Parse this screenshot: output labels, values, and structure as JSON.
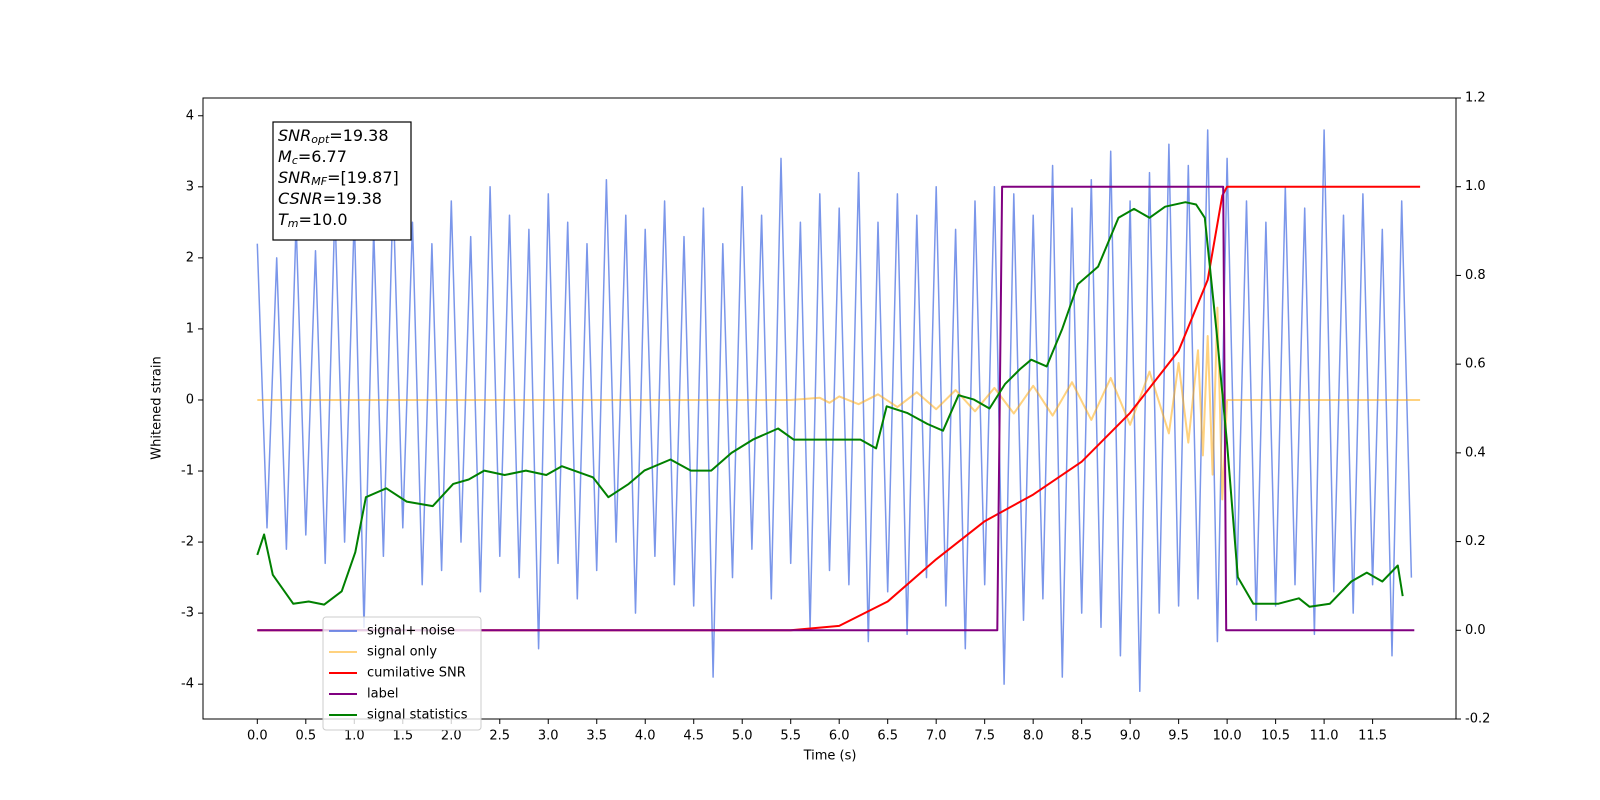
{
  "chart_data": {
    "type": "line",
    "xlabel": "Time (s)",
    "ylabel": "Whitened strain",
    "xlim": [
      -0.56,
      12.36
    ],
    "ylim": [
      -4.49,
      4.25
    ],
    "y2lim": [
      -0.2,
      1.2
    ],
    "xticks": [
      {
        "value": 0,
        "label": "0.0"
      },
      0.5,
      {
        "value": 1,
        "label": "1.0"
      },
      1.5,
      {
        "value": 2,
        "label": "2.0"
      },
      2.5,
      {
        "value": 3,
        "label": "3.0"
      },
      3.5,
      {
        "value": 4,
        "label": "4.0"
      },
      4.5,
      {
        "value": 5,
        "label": "5.0"
      },
      5.5,
      {
        "value": 6,
        "label": "6.0"
      },
      6.5,
      {
        "value": 7,
        "label": "7.0"
      },
      7.5,
      {
        "value": 8,
        "label": "8.0"
      },
      8.5,
      {
        "value": 9,
        "label": "9.0"
      },
      9.5,
      {
        "value": 10,
        "label": "10.0"
      },
      10.5,
      {
        "value": 11,
        "label": "11.0"
      },
      11.5
    ],
    "yticks": [
      -4,
      -3,
      -2,
      -1,
      0,
      1,
      2,
      3,
      4
    ],
    "y2ticks": [
      -0.2,
      {
        "value": 0,
        "label": "0.0"
      },
      0.2,
      0.4,
      0.6,
      0.8,
      {
        "value": 1,
        "label": "1.0"
      },
      1.2
    ],
    "legend": "lower left",
    "annotation": [
      {
        "main": "SNR",
        "sub": "opt",
        "rest": "=19.38"
      },
      {
        "main": "M",
        "sub": "c",
        "rest": "=6.77"
      },
      {
        "main": "SNR",
        "sub": "MF",
        "rest": "=[19.87]"
      },
      {
        "main": "CSNR",
        "rest": "=19.38"
      },
      {
        "main": "T",
        "sub": "m",
        "rest": "=10.0"
      }
    ],
    "series": [
      {
        "name": "signal+ noise",
        "color": "#4169e1",
        "axis": "y",
        "x": [
          0,
          0.1,
          0.2,
          0.3,
          0.4,
          0.5,
          0.6,
          0.7,
          0.8,
          0.9,
          1,
          1.1,
          1.2,
          1.3,
          1.4,
          1.5,
          1.6,
          1.7,
          1.8,
          1.9,
          2,
          2.1,
          2.2,
          2.3,
          2.4,
          2.5,
          2.6,
          2.7,
          2.8,
          2.9,
          3,
          3.1,
          3.2,
          3.3,
          3.4,
          3.5,
          3.6,
          3.7,
          3.8,
          3.9,
          4,
          4.1,
          4.2,
          4.3,
          4.4,
          4.5,
          4.6,
          4.7,
          4.8,
          4.9,
          5,
          5.1,
          5.2,
          5.3,
          5.4,
          5.5,
          5.6,
          5.7,
          5.8,
          5.9,
          6,
          6.1,
          6.2,
          6.3,
          6.4,
          6.5,
          6.6,
          6.7,
          6.8,
          6.9,
          7,
          7.1,
          7.2,
          7.3,
          7.4,
          7.5,
          7.6,
          7.7,
          7.8,
          7.9,
          8,
          8.1,
          8.2,
          8.3,
          8.4,
          8.5,
          8.6,
          8.7,
          8.8,
          8.9,
          9,
          9.1,
          9.2,
          9.3,
          9.4,
          9.5,
          9.6,
          9.7,
          9.8,
          9.9,
          10,
          10.1,
          10.2,
          10.3,
          10.4,
          10.5,
          10.6,
          10.7,
          10.8,
          10.9,
          11,
          11.1,
          11.2,
          11.3,
          11.4,
          11.5,
          11.6,
          11.7,
          11.8,
          11.9
        ],
        "values": [
          2.2,
          -1.8,
          2.0,
          -2.1,
          2.5,
          -1.9,
          2.1,
          -2.3,
          2.7,
          -2.0,
          2.6,
          -3.2,
          2.4,
          -2.2,
          2.9,
          -1.8,
          2.5,
          -2.6,
          2.2,
          -2.4,
          2.8,
          -2.0,
          2.3,
          -2.7,
          3.0,
          -2.2,
          2.6,
          -2.5,
          2.4,
          -3.5,
          2.9,
          -2.3,
          2.5,
          -2.8,
          2.2,
          -2.4,
          3.1,
          -2.0,
          2.6,
          -3.0,
          2.4,
          -2.2,
          2.8,
          -2.6,
          2.3,
          -2.9,
          2.7,
          -3.9,
          2.2,
          -2.5,
          3.0,
          -2.1,
          2.6,
          -2.8,
          3.4,
          -2.3,
          2.5,
          -3.2,
          2.9,
          -2.4,
          2.7,
          -2.6,
          3.2,
          -3.4,
          2.5,
          -2.7,
          2.9,
          -3.3,
          2.6,
          -2.5,
          3.0,
          -2.9,
          2.4,
          -3.5,
          2.8,
          -2.6,
          3.0,
          -4.0,
          2.9,
          -3.1,
          2.6,
          -2.8,
          3.3,
          -3.9,
          2.7,
          -3.0,
          3.1,
          -3.2,
          3.5,
          -3.6,
          2.8,
          -4.1,
          3.2,
          -3.0,
          3.6,
          -2.9,
          3.3,
          -2.8,
          3.8,
          -3.4,
          3.4,
          -2.6,
          2.8,
          -3.1,
          2.5,
          -2.9,
          3.0,
          -2.6,
          2.7,
          -3.3,
          3.8,
          -2.7,
          2.6,
          -3.0,
          2.9,
          -2.6,
          2.4,
          -3.6,
          2.8,
          -2.5
        ]
      },
      {
        "name": "signal only",
        "color": "#ffa500",
        "axis": "y",
        "x": [
          0,
          5.5,
          5.8,
          5.9,
          6.0,
          6.2,
          6.4,
          6.6,
          6.8,
          7.0,
          7.2,
          7.4,
          7.6,
          7.8,
          8.0,
          8.2,
          8.4,
          8.6,
          8.8,
          9.0,
          9.2,
          9.4,
          9.5,
          9.6,
          9.7,
          9.75,
          9.8,
          9.85,
          9.9,
          9.95,
          10.0,
          11.99
        ],
        "values": [
          0,
          0,
          0.03,
          -0.04,
          0.05,
          -0.06,
          0.08,
          -0.1,
          0.11,
          -0.13,
          0.14,
          -0.16,
          0.17,
          -0.19,
          0.2,
          -0.22,
          0.25,
          -0.28,
          0.31,
          -0.35,
          0.4,
          -0.47,
          0.52,
          -0.6,
          0.7,
          -0.78,
          0.9,
          -1.05,
          1.3,
          -1.4,
          0,
          0
        ]
      },
      {
        "name": "cumilative SNR",
        "color": "#ff0000",
        "axis": "y2",
        "x": [
          0,
          5.5,
          6.0,
          6.5,
          7.0,
          7.5,
          8.0,
          8.5,
          9.0,
          9.5,
          9.8,
          9.95,
          10.0,
          11.99
        ],
        "values": [
          0,
          0,
          0.01,
          0.065,
          0.16,
          0.246,
          0.306,
          0.38,
          0.49,
          0.63,
          0.79,
          0.98,
          1.0,
          1.0
        ]
      },
      {
        "name": "label",
        "color": "#800080",
        "axis": "y2",
        "x": [
          0,
          7.63,
          7.68,
          9.96,
          9.99,
          11.93
        ],
        "values": [
          0,
          0,
          1,
          1,
          0,
          0
        ]
      },
      {
        "name": "signal statistics",
        "color": "#008000",
        "axis": "y2",
        "x": [
          0,
          0.07,
          0.16,
          0.37,
          0.53,
          0.69,
          0.87,
          1.01,
          1.12,
          1.33,
          1.54,
          1.81,
          2.02,
          2.18,
          2.34,
          2.55,
          2.77,
          2.98,
          3.14,
          3.46,
          3.62,
          3.83,
          3.99,
          4.26,
          4.47,
          4.68,
          4.89,
          5.11,
          5.37,
          5.53,
          5.85,
          6.06,
          6.22,
          6.38,
          6.49,
          6.7,
          6.91,
          7.07,
          7.23,
          7.39,
          7.55,
          7.71,
          7.87,
          7.98,
          8.14,
          8.3,
          8.46,
          8.67,
          8.88,
          9.04,
          9.2,
          9.36,
          9.57,
          9.68,
          9.77,
          9.89,
          10.0,
          10.11,
          10.27,
          10.53,
          10.74,
          10.85,
          11.06,
          11.28,
          11.44,
          11.6,
          11.76,
          11.81
        ],
        "values": [
          0.17,
          0.216,
          0.125,
          0.06,
          0.065,
          0.058,
          0.088,
          0.176,
          0.3,
          0.32,
          0.29,
          0.28,
          0.33,
          0.34,
          0.36,
          0.35,
          0.36,
          0.35,
          0.37,
          0.345,
          0.3,
          0.33,
          0.36,
          0.385,
          0.36,
          0.36,
          0.4,
          0.43,
          0.455,
          0.43,
          0.43,
          0.43,
          0.43,
          0.41,
          0.505,
          0.49,
          0.465,
          0.45,
          0.53,
          0.52,
          0.5,
          0.555,
          0.59,
          0.61,
          0.595,
          0.68,
          0.78,
          0.82,
          0.93,
          0.95,
          0.93,
          0.955,
          0.965,
          0.96,
          0.93,
          0.675,
          0.42,
          0.12,
          0.06,
          0.06,
          0.072,
          0.053,
          0.06,
          0.11,
          0.13,
          0.11,
          0.146,
          0.077
        ]
      }
    ]
  }
}
